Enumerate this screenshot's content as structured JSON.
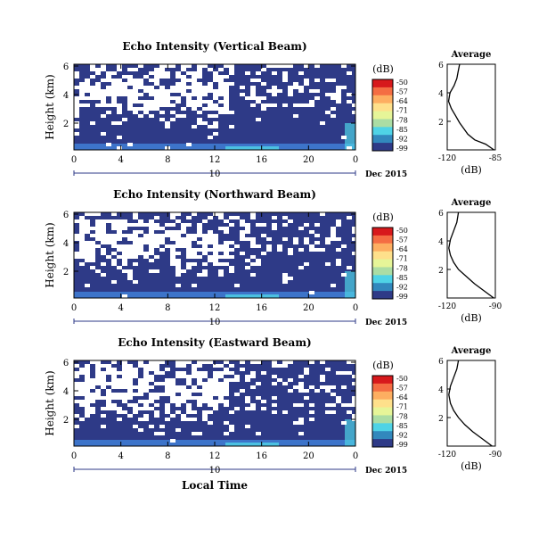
{
  "chart_data": [
    {
      "type": "heatmap",
      "title": "Echo Intensity (Vertical Beam)",
      "ylabel": "Height (km)",
      "y_ticks": [
        "6",
        "4",
        "2"
      ],
      "x_ticks": [
        "0",
        "4",
        "8",
        "12",
        "16",
        "20",
        "0"
      ],
      "date_tick": "10",
      "date_label": "Dec 2015",
      "colorbar_unit": "(dB)",
      "colorbar_ticks": [
        "-50",
        "-57",
        "-64",
        "-71",
        "-78",
        "-85",
        "-92",
        "-99"
      ],
      "average_title": "Average",
      "average_xlabel": "(dB)",
      "average_x_ticks": [
        "-120",
        "-85"
      ],
      "average_y_ticks": [
        "6",
        "4",
        "2"
      ],
      "average_profile": [
        [
          -86,
          0
        ],
        [
          -92,
          0.4
        ],
        [
          -100,
          0.7
        ],
        [
          -105,
          1.1
        ],
        [
          -108,
          1.5
        ],
        [
          -111,
          1.9
        ],
        [
          -114,
          2.4
        ],
        [
          -117,
          2.9
        ],
        [
          -119,
          3.4
        ],
        [
          -118,
          4.0
        ],
        [
          -115,
          4.5
        ],
        [
          -113,
          5.0
        ],
        [
          -112,
          5.5
        ],
        [
          -111,
          6.0
        ]
      ],
      "white_fraction_by_height_band": [
        0.02,
        0.05,
        0.12,
        0.35,
        0.55,
        0.65,
        0.45,
        0.3
      ]
    },
    {
      "type": "heatmap",
      "title": "Echo Intensity (Northward Beam)",
      "ylabel": "Height (km)",
      "y_ticks": [
        "6",
        "4",
        "2"
      ],
      "x_ticks": [
        "0",
        "4",
        "8",
        "12",
        "16",
        "20",
        "0"
      ],
      "date_tick": "10",
      "date_label": "Dec 2015",
      "colorbar_unit": "(dB)",
      "colorbar_ticks": [
        "-50",
        "-57",
        "-64",
        "-71",
        "-78",
        "-85",
        "-92",
        "-99"
      ],
      "average_title": "Average",
      "average_xlabel": "(dB)",
      "average_x_ticks": [
        "-120",
        "-90"
      ],
      "average_y_ticks": [
        "6",
        "4",
        "2"
      ],
      "average_profile": [
        [
          -91,
          0
        ],
        [
          -97,
          0.5
        ],
        [
          -103,
          1.0
        ],
        [
          -108,
          1.5
        ],
        [
          -113,
          2.0
        ],
        [
          -116,
          2.5
        ],
        [
          -118,
          3.0
        ],
        [
          -119,
          3.5
        ],
        [
          -118,
          4.1
        ],
        [
          -116,
          4.7
        ],
        [
          -114,
          5.3
        ],
        [
          -113,
          6.0
        ]
      ],
      "white_fraction_by_height_band": [
        0.02,
        0.08,
        0.18,
        0.4,
        0.55,
        0.62,
        0.5,
        0.35
      ]
    },
    {
      "type": "heatmap",
      "title": "Echo Intensity (Eastward Beam)",
      "ylabel": "Height (km)",
      "y_ticks": [
        "6",
        "4",
        "2"
      ],
      "x_ticks": [
        "0",
        "4",
        "8",
        "12",
        "16",
        "20",
        "0"
      ],
      "date_tick": "10",
      "date_label": "Dec 2015",
      "colorbar_unit": "(dB)",
      "colorbar_ticks": [
        "-50",
        "-57",
        "-64",
        "-71",
        "-78",
        "-85",
        "-92",
        "-99"
      ],
      "average_title": "Average",
      "average_xlabel": "(dB)",
      "average_x_ticks": [
        "-120",
        "-90"
      ],
      "average_y_ticks": [
        "6",
        "4",
        "2"
      ],
      "average_profile": [
        [
          -92,
          0
        ],
        [
          -98,
          0.5
        ],
        [
          -104,
          1.0
        ],
        [
          -109,
          1.5
        ],
        [
          -113,
          2.0
        ],
        [
          -116,
          2.5
        ],
        [
          -118,
          3.0
        ],
        [
          -119,
          3.6
        ],
        [
          -118,
          4.2
        ],
        [
          -116,
          4.8
        ],
        [
          -114,
          5.4
        ],
        [
          -113,
          6.0
        ]
      ],
      "white_fraction_by_height_band": [
        0.03,
        0.12,
        0.25,
        0.4,
        0.5,
        0.6,
        0.55,
        0.45
      ]
    }
  ],
  "x_axis_label": "Local Time",
  "colors": {
    "background_echo": "#2e3a87",
    "near_ground_echo": "#3f7fd6",
    "bright_echo": "#4fd3e6",
    "missing": "#ffffff"
  }
}
